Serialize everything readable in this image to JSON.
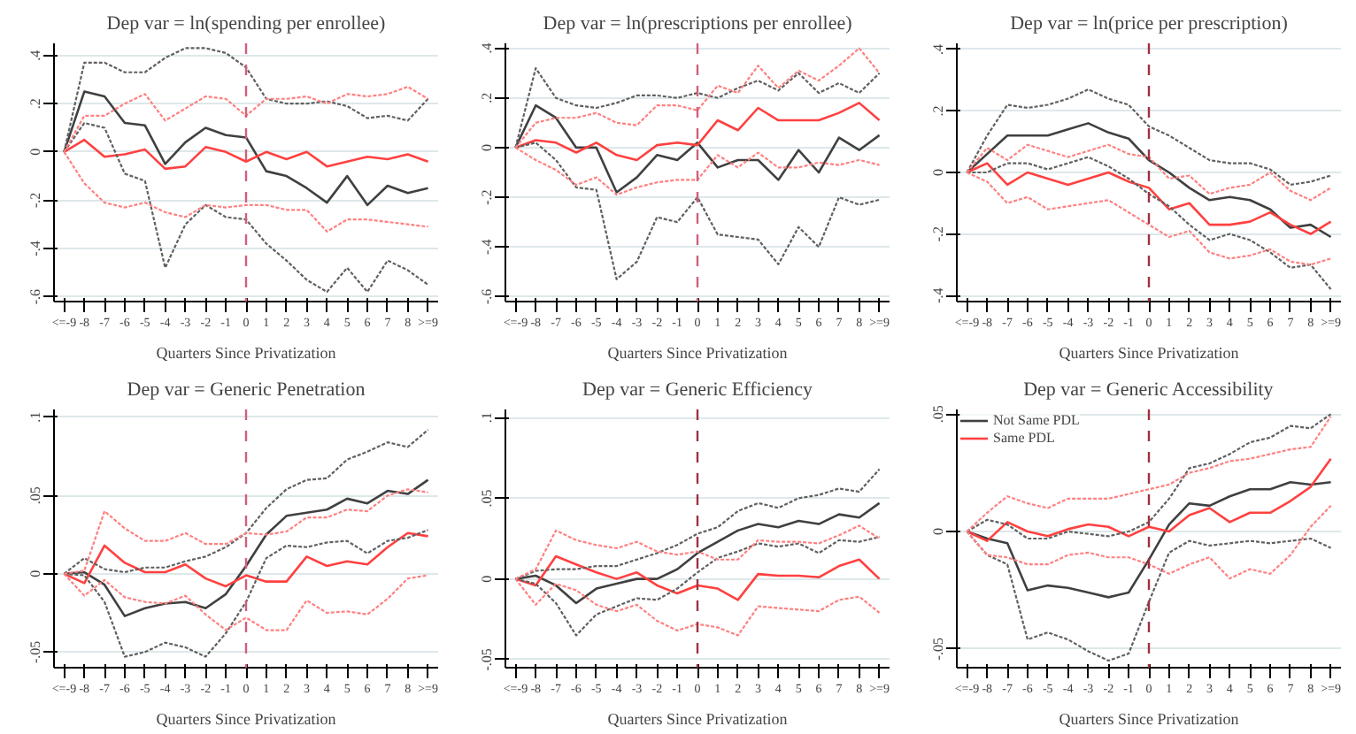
{
  "chart_data": [
    {
      "type": "line",
      "title": "Dep var = ln(spending per enrollee)",
      "xlabel": "Quarters Since Privatization",
      "categories": [
        "<=-9",
        "-8",
        "-7",
        "-6",
        "-5",
        "-4",
        "-3",
        "-2",
        "-1",
        "0",
        "1",
        "2",
        "3",
        "4",
        "5",
        "6",
        "7",
        "8",
        ">=9"
      ],
      "ylim": [
        -0.62,
        0.45
      ],
      "yticks": [
        {
          "value": -0.6,
          "label": "-.6"
        },
        {
          "value": -0.4,
          "label": "-.4"
        },
        {
          "value": -0.2,
          "label": "-.2"
        },
        {
          "value": 0,
          "label": "0"
        },
        {
          "value": 0.2,
          "label": ".2"
        },
        {
          "value": 0.4,
          "label": ".4"
        }
      ],
      "grid": "y",
      "ref_lines": [
        {
          "axis": "x",
          "value": "0",
          "color": "#d0607a",
          "line_style": "dashed"
        }
      ],
      "series": [
        {
          "color": "#404040",
          "values": [
            0,
            0.25,
            0.23,
            0.12,
            0.11,
            -0.05,
            0.04,
            0.1,
            0.07,
            0.06,
            -0.08,
            -0.1,
            -0.15,
            -0.21,
            -0.1,
            -0.22,
            -0.14,
            -0.17,
            -0.15
          ]
        },
        {
          "color": "#ff4040",
          "values": [
            0,
            0.05,
            -0.02,
            -0.01,
            0.01,
            -0.07,
            -0.06,
            0.02,
            0,
            -0.04,
            0,
            -0.03,
            0,
            -0.06,
            -0.04,
            -0.02,
            -0.03,
            -0.01,
            -0.04
          ]
        },
        {
          "color": "#606060",
          "line_style": "dotted",
          "values": [
            0,
            0.37,
            0.37,
            0.33,
            0.33,
            0.39,
            0.43,
            0.43,
            0.41,
            0.35,
            0.22,
            0.2,
            0.2,
            0.21,
            0.19,
            0.14,
            0.15,
            0.13,
            0.22
          ]
        },
        {
          "color": "#606060",
          "line_style": "dotted",
          "values": [
            0,
            0.12,
            0.1,
            -0.09,
            -0.12,
            -0.48,
            -0.3,
            -0.22,
            -0.27,
            -0.28,
            -0.38,
            -0.45,
            -0.53,
            -0.58,
            -0.48,
            -0.58,
            -0.45,
            -0.49,
            -0.55
          ]
        },
        {
          "color": "#ff8080",
          "line_style": "dotted",
          "values": [
            0,
            0.15,
            0.15,
            0.2,
            0.24,
            0.13,
            0.18,
            0.23,
            0.22,
            0.15,
            0.22,
            0.22,
            0.23,
            0.2,
            0.24,
            0.23,
            0.24,
            0.27,
            0.22
          ]
        },
        {
          "color": "#ff8080",
          "line_style": "dotted",
          "values": [
            0,
            -0.13,
            -0.21,
            -0.23,
            -0.21,
            -0.25,
            -0.27,
            -0.22,
            -0.23,
            -0.22,
            -0.22,
            -0.24,
            -0.24,
            -0.33,
            -0.28,
            -0.28,
            -0.29,
            -0.3,
            -0.31
          ]
        }
      ]
    },
    {
      "type": "line",
      "title": "Dep var = ln(prescriptions per enrollee)",
      "xlabel": "Quarters Since Privatization",
      "categories": [
        "<=-9",
        "-8",
        "-7",
        "-6",
        "-5",
        "-4",
        "-3",
        "-2",
        "-1",
        "0",
        "1",
        "2",
        "3",
        "4",
        "5",
        "6",
        "7",
        "8",
        ">=9"
      ],
      "ylim": [
        -0.62,
        0.42
      ],
      "yticks": [
        {
          "value": -0.6,
          "label": "-.6"
        },
        {
          "value": -0.4,
          "label": "-.4"
        },
        {
          "value": -0.2,
          "label": "-.2"
        },
        {
          "value": 0,
          "label": "0"
        },
        {
          "value": 0.2,
          "label": ".2"
        },
        {
          "value": 0.4,
          "label": ".4"
        }
      ],
      "grid": "y",
      "ref_lines": [
        {
          "axis": "x",
          "value": "0",
          "color": "#d0607a",
          "line_style": "dashed"
        }
      ],
      "series": [
        {
          "color": "#404040",
          "values": [
            0,
            0.17,
            0.12,
            0,
            0,
            -0.18,
            -0.12,
            -0.03,
            -0.05,
            0.02,
            -0.08,
            -0.05,
            -0.05,
            -0.13,
            -0.01,
            -0.1,
            0.04,
            -0.01,
            0.05
          ]
        },
        {
          "color": "#ff4040",
          "values": [
            0,
            0.03,
            0.02,
            -0.02,
            0.02,
            -0.03,
            -0.05,
            0.01,
            0.02,
            0.01,
            0.11,
            0.07,
            0.16,
            0.11,
            0.11,
            0.11,
            0.14,
            0.18,
            0.11
          ]
        },
        {
          "color": "#606060",
          "line_style": "dotted",
          "values": [
            0,
            0.32,
            0.2,
            0.17,
            0.16,
            0.18,
            0.21,
            0.21,
            0.2,
            0.22,
            0.2,
            0.24,
            0.27,
            0.23,
            0.3,
            0.22,
            0.26,
            0.22,
            0.3
          ]
        },
        {
          "color": "#606060",
          "line_style": "dotted",
          "values": [
            0,
            0.02,
            -0.05,
            -0.16,
            -0.17,
            -0.53,
            -0.46,
            -0.28,
            -0.3,
            -0.2,
            -0.35,
            -0.36,
            -0.37,
            -0.47,
            -0.32,
            -0.4,
            -0.2,
            -0.23,
            -0.21
          ]
        },
        {
          "color": "#ff8080",
          "line_style": "dotted",
          "values": [
            0,
            0.1,
            0.12,
            0.12,
            0.14,
            0.1,
            0.09,
            0.17,
            0.17,
            0.15,
            0.25,
            0.22,
            0.33,
            0.24,
            0.31,
            0.27,
            0.33,
            0.4,
            0.3
          ]
        },
        {
          "color": "#ff8080",
          "line_style": "dotted",
          "values": [
            0,
            -0.05,
            -0.09,
            -0.15,
            -0.12,
            -0.19,
            -0.16,
            -0.14,
            -0.13,
            -0.13,
            -0.03,
            -0.08,
            -0.02,
            -0.08,
            -0.08,
            -0.06,
            -0.07,
            -0.05,
            -0.07
          ]
        }
      ]
    },
    {
      "type": "line",
      "title": "Dep var = ln(price per prescription)",
      "xlabel": "Quarters Since Privatization",
      "categories": [
        "<=-9",
        "-8",
        "-7",
        "-6",
        "-5",
        "-4",
        "-3",
        "-2",
        "-1",
        "0",
        "1",
        "2",
        "3",
        "4",
        "5",
        "6",
        "7",
        "8",
        ">=9"
      ],
      "ylim": [
        -0.42,
        0.42
      ],
      "yticks": [
        {
          "value": -0.4,
          "label": "-.4"
        },
        {
          "value": -0.2,
          "label": "-.2"
        },
        {
          "value": 0,
          "label": "0"
        },
        {
          "value": 0.2,
          "label": ".2"
        },
        {
          "value": 0.4,
          "label": ".4"
        }
      ],
      "grid": "y",
      "ref_lines": [
        {
          "axis": "x",
          "value": "0",
          "color": "#a03040",
          "line_style": "dashed"
        }
      ],
      "series": [
        {
          "color": "#404040",
          "values": [
            0,
            0.06,
            0.12,
            0.12,
            0.12,
            0.14,
            0.16,
            0.13,
            0.11,
            0.04,
            0,
            -0.05,
            -0.09,
            -0.08,
            -0.09,
            -0.12,
            -0.18,
            -0.17,
            -0.21
          ]
        },
        {
          "color": "#ff4040",
          "values": [
            0,
            0.03,
            -0.04,
            0,
            -0.02,
            -0.04,
            -0.02,
            0,
            -0.03,
            -0.05,
            -0.12,
            -0.1,
            -0.17,
            -0.17,
            -0.16,
            -0.13,
            -0.17,
            -0.2,
            -0.16
          ]
        },
        {
          "color": "#606060",
          "line_style": "dotted",
          "values": [
            0,
            0.12,
            0.22,
            0.21,
            0.22,
            0.24,
            0.27,
            0.24,
            0.22,
            0.15,
            0.12,
            0.08,
            0.04,
            0.03,
            0.03,
            0.01,
            -0.04,
            -0.03,
            -0.01
          ]
        },
        {
          "color": "#606060",
          "line_style": "dotted",
          "values": [
            0,
            0,
            0.03,
            0.03,
            0.01,
            0.03,
            0.05,
            0.02,
            -0.02,
            -0.07,
            -0.11,
            -0.17,
            -0.22,
            -0.2,
            -0.22,
            -0.26,
            -0.31,
            -0.3,
            -0.38
          ]
        },
        {
          "color": "#ff8080",
          "line_style": "dotted",
          "values": [
            0,
            0.08,
            0.04,
            0.09,
            0.07,
            0.05,
            0.07,
            0.09,
            0.06,
            0.05,
            -0.02,
            -0.01,
            -0.07,
            -0.05,
            -0.04,
            0,
            -0.06,
            -0.09,
            -0.05
          ]
        },
        {
          "color": "#ff8080",
          "line_style": "dotted",
          "values": [
            0,
            -0.03,
            -0.1,
            -0.08,
            -0.12,
            -0.11,
            -0.1,
            -0.09,
            -0.13,
            -0.17,
            -0.21,
            -0.19,
            -0.26,
            -0.28,
            -0.27,
            -0.25,
            -0.29,
            -0.3,
            -0.28
          ]
        }
      ]
    },
    {
      "type": "line",
      "title": "Dep var = Generic Penetration",
      "xlabel": "Quarters Since Privatization",
      "categories": [
        "<=-9",
        "-8",
        "-7",
        "-6",
        "-5",
        "-4",
        "-3",
        "-2",
        "-1",
        "0",
        "1",
        "2",
        "3",
        "4",
        "5",
        "6",
        "7",
        "8",
        ">=9"
      ],
      "ylim": [
        -0.06,
        0.105
      ],
      "yticks": [
        {
          "value": -0.05,
          "label": "-.05"
        },
        {
          "value": 0,
          "label": "0"
        },
        {
          "value": 0.05,
          "label": ".05"
        },
        {
          "value": 0.1,
          "label": ".1"
        }
      ],
      "grid": "y",
      "ref_lines": [
        {
          "axis": "x",
          "value": "0",
          "color": "#d0607a",
          "line_style": "dashed"
        }
      ],
      "series": [
        {
          "color": "#404040",
          "values": [
            0,
            0.001,
            -0.007,
            -0.027,
            -0.022,
            -0.019,
            -0.018,
            -0.022,
            -0.013,
            0.005,
            0.025,
            0.037,
            0.039,
            0.041,
            0.048,
            0.045,
            0.053,
            0.051,
            0.06
          ]
        },
        {
          "color": "#ff4040",
          "values": [
            0,
            -0.006,
            0.018,
            0.007,
            0.001,
            0.001,
            0.006,
            -0.003,
            -0.008,
            -0.001,
            -0.005,
            -0.005,
            0.011,
            0.005,
            0.008,
            0.006,
            0.017,
            0.026,
            0.024
          ]
        },
        {
          "color": "#606060",
          "line_style": "dotted",
          "values": [
            0,
            0.01,
            0.003,
            0.001,
            0.004,
            0.004,
            0.008,
            0.011,
            0.017,
            0.026,
            0.042,
            0.054,
            0.06,
            0.061,
            0.073,
            0.078,
            0.084,
            0.081,
            0.092
          ]
        },
        {
          "color": "#606060",
          "line_style": "dotted",
          "values": [
            0,
            -0.001,
            -0.018,
            -0.053,
            -0.05,
            -0.044,
            -0.047,
            -0.053,
            -0.038,
            -0.018,
            0.01,
            0.018,
            0.017,
            0.02,
            0.021,
            0.013,
            0.021,
            0.023,
            0.028
          ]
        },
        {
          "color": "#ff8080",
          "line_style": "dotted",
          "values": [
            0,
            0.002,
            0.04,
            0.029,
            0.021,
            0.021,
            0.026,
            0.019,
            0.019,
            0.026,
            0.025,
            0.027,
            0.036,
            0.036,
            0.041,
            0.04,
            0.05,
            0.054,
            0.052
          ]
        },
        {
          "color": "#ff8080",
          "line_style": "dotted",
          "values": [
            0,
            -0.014,
            -0.004,
            -0.015,
            -0.018,
            -0.019,
            -0.014,
            -0.026,
            -0.036,
            -0.028,
            -0.036,
            -0.036,
            -0.017,
            -0.025,
            -0.024,
            -0.026,
            -0.016,
            -0.003,
            -0.001
          ]
        }
      ]
    },
    {
      "type": "line",
      "title": "Dep var = Generic Efficiency",
      "xlabel": "Quarters Since Privatization",
      "categories": [
        "<=-9",
        "-8",
        "-7",
        "-6",
        "-5",
        "-4",
        "-3",
        "-2",
        "-1",
        "0",
        "1",
        "2",
        "3",
        "4",
        "5",
        "6",
        "7",
        "8",
        ">=9"
      ],
      "ylim": [
        -0.055,
        0.105
      ],
      "yticks": [
        {
          "value": -0.05,
          "label": "-.05"
        },
        {
          "value": 0,
          "label": "0"
        },
        {
          "value": 0.05,
          "label": ".05"
        },
        {
          "value": 0.1,
          "label": ".1"
        }
      ],
      "grid": "y",
      "ref_lines": [
        {
          "axis": "x",
          "value": "0",
          "color": "#a03040",
          "line_style": "dashed"
        }
      ],
      "series": [
        {
          "color": "#404040",
          "values": [
            0,
            0.002,
            -0.004,
            -0.015,
            -0.006,
            -0.003,
            0,
            0,
            0.006,
            0.016,
            0.023,
            0.03,
            0.034,
            0.032,
            0.036,
            0.034,
            0.04,
            0.038,
            0.047
          ]
        },
        {
          "color": "#ff4040",
          "values": [
            0,
            -0.004,
            0.014,
            0.009,
            0.004,
            0,
            0.004,
            -0.004,
            -0.009,
            -0.004,
            -0.006,
            -0.013,
            0.003,
            0.002,
            0.002,
            0.001,
            0.008,
            0.012,
            0
          ]
        },
        {
          "color": "#606060",
          "line_style": "dotted",
          "values": [
            0,
            0.005,
            0.006,
            0.006,
            0.008,
            0.008,
            0.012,
            0.016,
            0.021,
            0.028,
            0.032,
            0.042,
            0.047,
            0.044,
            0.05,
            0.052,
            0.056,
            0.054,
            0.068
          ]
        },
        {
          "color": "#606060",
          "line_style": "dotted",
          "values": [
            0,
            -0.003,
            -0.015,
            -0.035,
            -0.022,
            -0.017,
            -0.012,
            -0.013,
            -0.006,
            0.004,
            0.013,
            0.017,
            0.022,
            0.02,
            0.022,
            0.016,
            0.024,
            0.023,
            0.026
          ]
        },
        {
          "color": "#ff8080",
          "line_style": "dotted",
          "values": [
            0,
            0.006,
            0.03,
            0.024,
            0.021,
            0.019,
            0.023,
            0.017,
            0.015,
            0.017,
            0.012,
            0.012,
            0.024,
            0.023,
            0.023,
            0.022,
            0.027,
            0.033,
            0.025
          ]
        },
        {
          "color": "#ff8080",
          "line_style": "dotted",
          "values": [
            0,
            -0.016,
            -0.003,
            -0.007,
            -0.016,
            -0.02,
            -0.016,
            -0.026,
            -0.032,
            -0.028,
            -0.03,
            -0.035,
            -0.017,
            -0.018,
            -0.019,
            -0.02,
            -0.013,
            -0.011,
            -0.021
          ]
        }
      ]
    },
    {
      "type": "line",
      "title": "Dep var = Generic Accessibility",
      "xlabel": "Quarters Since Privatization",
      "categories": [
        "<=-9",
        "-8",
        "-7",
        "-6",
        "-5",
        "-4",
        "-3",
        "-2",
        "-1",
        "0",
        "1",
        "2",
        "3",
        "4",
        "5",
        "6",
        "7",
        "8",
        ">=9"
      ],
      "ylim": [
        -0.058,
        0.052
      ],
      "yticks": [
        {
          "value": -0.05,
          "label": "-.05"
        },
        {
          "value": 0,
          "label": "0"
        },
        {
          "value": 0.05,
          "label": ".05"
        }
      ],
      "grid": "y",
      "legend": "top left",
      "ref_lines": [
        {
          "axis": "x",
          "value": "0",
          "color": "#a03040",
          "line_style": "dashed"
        }
      ],
      "series": [
        {
          "name": "Not Same PDL",
          "color": "#404040",
          "values": [
            0,
            -0.003,
            -0.005,
            -0.025,
            -0.023,
            -0.024,
            -0.026,
            -0.028,
            -0.026,
            -0.012,
            0.003,
            0.012,
            0.011,
            0.015,
            0.018,
            0.018,
            0.021,
            0.02,
            0.021
          ]
        },
        {
          "name": "Same PDL",
          "color": "#ff4040",
          "values": [
            0,
            -0.004,
            0.004,
            0,
            -0.002,
            0.001,
            0.003,
            0.002,
            -0.002,
            0.002,
            0,
            0.007,
            0.01,
            0.004,
            0.008,
            0.008,
            0.013,
            0.019,
            0.031
          ]
        },
        {
          "color": "#606060",
          "line_style": "dotted",
          "values": [
            0,
            0.005,
            0.003,
            -0.003,
            -0.003,
            0,
            -0.001,
            -0.002,
            0,
            0.004,
            0.014,
            0.027,
            0.029,
            0.033,
            0.038,
            0.04,
            0.045,
            0.044,
            0.05
          ]
        },
        {
          "color": "#606060",
          "line_style": "dotted",
          "values": [
            0,
            -0.01,
            -0.014,
            -0.046,
            -0.043,
            -0.046,
            -0.051,
            -0.055,
            -0.052,
            -0.03,
            -0.009,
            -0.004,
            -0.006,
            -0.005,
            -0.004,
            -0.005,
            -0.004,
            -0.003,
            -0.007
          ]
        },
        {
          "color": "#ff8080",
          "line_style": "dotted",
          "values": [
            0,
            0.008,
            0.015,
            0.012,
            0.01,
            0.014,
            0.014,
            0.014,
            0.016,
            0.018,
            0.02,
            0.025,
            0.027,
            0.03,
            0.031,
            0.033,
            0.035,
            0.036,
            0.049
          ]
        },
        {
          "color": "#ff8080",
          "line_style": "dotted",
          "values": [
            0,
            -0.01,
            -0.011,
            -0.014,
            -0.014,
            -0.01,
            -0.009,
            -0.011,
            -0.011,
            -0.014,
            -0.018,
            -0.014,
            -0.011,
            -0.02,
            -0.016,
            -0.018,
            -0.01,
            0.002,
            0.011
          ]
        }
      ]
    }
  ]
}
